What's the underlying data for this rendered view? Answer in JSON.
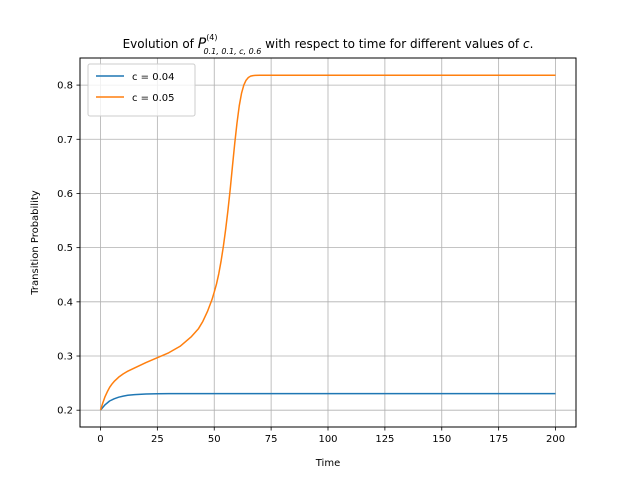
{
  "chart_data": {
    "type": "line",
    "title_parts": {
      "prefix": "Evolution of ",
      "symbol": "P",
      "superscript": "(4)",
      "subscript": "0.1, 0.1, c, 0.6",
      "suffix": " with respect to time for different values of ",
      "variable": "c",
      "end": "."
    },
    "xlabel": "Time",
    "ylabel": "Transition Probability",
    "xlim": [
      -9,
      209
    ],
    "ylim": [
      0.169,
      0.85
    ],
    "xticks": [
      0,
      25,
      50,
      75,
      100,
      125,
      150,
      175,
      200
    ],
    "yticks": [
      0.2,
      0.3,
      0.4,
      0.5,
      0.6,
      0.7,
      0.8
    ],
    "ytick_labels": [
      "0.2",
      "0.3",
      "0.4",
      "0.5",
      "0.6",
      "0.7",
      "0.8"
    ],
    "grid": true,
    "legend_position": "top-left",
    "series": [
      {
        "name": "c = 0.04",
        "color": "#1f77b4",
        "x": [
          0,
          2,
          4,
          6,
          8,
          10,
          12,
          15,
          20,
          25,
          30,
          40,
          50,
          75,
          100,
          125,
          150,
          175,
          200
        ],
        "y": [
          0.2,
          0.21,
          0.217,
          0.221,
          0.224,
          0.226,
          0.2275,
          0.2288,
          0.2298,
          0.2303,
          0.2305,
          0.2306,
          0.2306,
          0.2306,
          0.2306,
          0.2306,
          0.2306,
          0.2306,
          0.2306
        ]
      },
      {
        "name": "c = 0.05",
        "color": "#ff7f0e",
        "x": [
          0,
          1,
          2,
          3,
          4,
          5,
          6,
          8,
          10,
          12,
          15,
          20,
          25,
          30,
          35,
          40,
          43,
          45,
          47,
          49,
          50,
          51,
          52,
          53,
          54,
          55,
          56,
          57,
          58,
          59,
          60,
          61,
          62,
          63,
          64,
          65,
          66,
          67,
          68,
          70,
          72,
          75,
          80,
          100,
          125,
          150,
          175,
          200
        ],
        "y": [
          0.2,
          0.213,
          0.225,
          0.234,
          0.242,
          0.248,
          0.253,
          0.261,
          0.267,
          0.272,
          0.278,
          0.288,
          0.297,
          0.306,
          0.318,
          0.336,
          0.35,
          0.364,
          0.382,
          0.404,
          0.418,
          0.433,
          0.452,
          0.475,
          0.502,
          0.533,
          0.568,
          0.607,
          0.65,
          0.692,
          0.73,
          0.762,
          0.785,
          0.8,
          0.809,
          0.814,
          0.8165,
          0.8175,
          0.818,
          0.8182,
          0.8182,
          0.8182,
          0.8182,
          0.8182,
          0.8182,
          0.8182,
          0.8182,
          0.8182
        ]
      }
    ]
  }
}
